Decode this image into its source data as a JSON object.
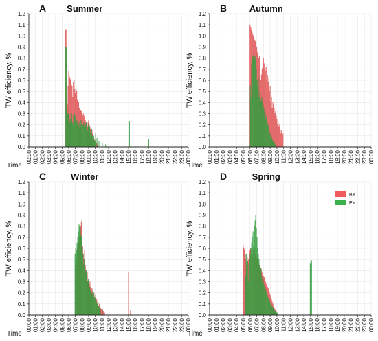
{
  "figure": {
    "ylabel": "TW efficiency, %",
    "xname": "Time",
    "legend": [
      {
        "name": "BY",
        "color": "#f05a5a"
      },
      {
        "name": "EY",
        "color": "#3cb04a"
      }
    ],
    "yticks": [
      0.0,
      0.1,
      0.2,
      0.3,
      0.4,
      0.5,
      0.6,
      0.7,
      0.8,
      0.9,
      1.0,
      1.1,
      1.2
    ],
    "xticks": [
      "00:00",
      "01:00",
      "02:00",
      "03:00",
      "04:00",
      "05:00",
      "06:00",
      "07:00",
      "08:00",
      "09:00",
      "10:00",
      "11:00",
      "12:00",
      "13:00",
      "14:00",
      "15:00",
      "16:00",
      "17:00",
      "18:00",
      "19:00",
      "20:00",
      "21:00",
      "22:00",
      "23:00",
      "00:00"
    ]
  },
  "chart_data": [
    {
      "type": "bar",
      "letter": "A",
      "title": "Summer",
      "xlim": [
        0,
        24
      ],
      "ylim": [
        0,
        1.2
      ],
      "grid": true,
      "series": [
        {
          "name": "BY",
          "color": "#f05a5a",
          "x": [
            5.5,
            5.6,
            5.7,
            5.8,
            5.9,
            6.0,
            6.1,
            6.2,
            6.3,
            6.4,
            6.5,
            6.6,
            6.7,
            6.8,
            6.9,
            7.0,
            7.1,
            7.2,
            7.3,
            7.4,
            7.5,
            7.6,
            7.7,
            7.8,
            7.9,
            8.0,
            8.1,
            8.2,
            8.3,
            8.4,
            8.5,
            8.6,
            8.7,
            8.8,
            8.9,
            9.0,
            9.1,
            9.2,
            9.3,
            9.4,
            9.5,
            9.6,
            9.7,
            9.8,
            9.9,
            10.0,
            10.1,
            10.2,
            10.3,
            10.4
          ],
          "values": [
            1.05,
            1.06,
            0.45,
            0.38,
            0.55,
            0.68,
            0.64,
            0.62,
            0.6,
            0.56,
            0.55,
            0.45,
            0.58,
            0.6,
            0.52,
            0.48,
            0.52,
            0.5,
            0.42,
            0.38,
            0.4,
            0.35,
            0.3,
            0.33,
            0.32,
            0.3,
            0.28,
            0.3,
            0.28,
            0.25,
            0.24,
            0.22,
            0.2,
            0.18,
            0.22,
            0.24,
            0.2,
            0.18,
            0.16,
            0.12,
            0.15,
            0.12,
            0.1,
            0.08,
            0.06,
            0.05,
            0.04,
            0.03,
            0.02,
            0.02
          ]
        },
        {
          "name": "EY",
          "color": "#3cb04a",
          "x": [
            5.55,
            5.65,
            5.75,
            5.85,
            5.95,
            6.05,
            6.15,
            6.25,
            6.35,
            6.45,
            6.55,
            6.65,
            6.75,
            6.85,
            6.95,
            7.05,
            7.15,
            7.25,
            7.35,
            7.45,
            7.55,
            7.65,
            7.75,
            7.85,
            7.95,
            8.05,
            8.15,
            8.25,
            8.35,
            8.45,
            8.55,
            8.65,
            8.75,
            8.85,
            8.95,
            9.05,
            9.15,
            9.25,
            9.35,
            9.45,
            9.55,
            9.65,
            9.75,
            9.85,
            9.95,
            10.05,
            10.25,
            10.55,
            11.05,
            11.55,
            12.05,
            15.05,
            15.15,
            17.95,
            18.05
          ],
          "values": [
            0.9,
            0.9,
            0.35,
            0.3,
            0.3,
            0.28,
            0.22,
            0.25,
            0.2,
            0.3,
            0.22,
            0.2,
            0.28,
            0.3,
            0.28,
            0.26,
            0.22,
            0.24,
            0.2,
            0.22,
            0.18,
            0.22,
            0.18,
            0.24,
            0.2,
            0.18,
            0.2,
            0.22,
            0.18,
            0.2,
            0.2,
            0.22,
            0.18,
            0.15,
            0.2,
            0.2,
            0.18,
            0.12,
            0.14,
            0.16,
            0.1,
            0.08,
            0.1,
            0.06,
            0.05,
            0.12,
            0.08,
            0.05,
            0.03,
            0.02,
            0.02,
            0.23,
            0.23,
            0.05,
            0.07
          ]
        }
      ]
    },
    {
      "type": "bar",
      "letter": "B",
      "title": "Autumn",
      "xlim": [
        0,
        24
      ],
      "ylim": [
        0,
        1.2
      ],
      "grid": true,
      "series": [
        {
          "name": "BY",
          "color": "#f05a5a",
          "x": [
            6.0,
            6.1,
            6.2,
            6.3,
            6.4,
            6.5,
            6.6,
            6.7,
            6.8,
            6.9,
            7.0,
            7.1,
            7.2,
            7.3,
            7.4,
            7.5,
            7.6,
            7.7,
            7.8,
            7.9,
            8.0,
            8.1,
            8.2,
            8.3,
            8.4,
            8.5,
            8.6,
            8.7,
            8.8,
            8.9,
            9.0,
            9.1,
            9.2,
            9.3,
            9.4,
            9.5,
            9.6,
            9.7,
            9.8,
            9.9,
            10.0,
            10.1,
            10.2,
            10.3,
            10.4,
            10.5,
            10.6,
            10.7,
            10.8,
            10.9
          ],
          "values": [
            1.1,
            1.08,
            1.05,
            1.04,
            1.02,
            1.0,
            0.98,
            0.96,
            0.95,
            0.92,
            0.9,
            0.85,
            0.88,
            0.8,
            0.82,
            0.75,
            0.6,
            0.65,
            0.7,
            0.72,
            0.8,
            0.75,
            0.7,
            0.68,
            0.72,
            0.6,
            0.65,
            0.58,
            0.62,
            0.5,
            0.55,
            0.4,
            0.45,
            0.35,
            0.4,
            0.38,
            0.35,
            0.3,
            0.32,
            0.28,
            0.25,
            0.2,
            0.22,
            0.18,
            0.2,
            0.15,
            0.12,
            0.15,
            0.1,
            0.12
          ]
        },
        {
          "name": "EY",
          "color": "#3cb04a",
          "x": [
            6.05,
            6.15,
            6.25,
            6.35,
            6.45,
            6.55,
            6.65,
            6.75,
            6.85,
            6.95,
            7.05,
            7.15,
            7.25,
            7.35,
            7.45,
            7.55,
            7.65,
            7.75,
            7.85,
            7.95,
            8.05,
            8.15,
            8.25,
            8.35,
            8.45,
            8.55,
            8.65,
            8.75,
            8.85,
            8.95,
            9.05,
            9.15,
            9.25,
            9.35,
            9.45,
            9.55,
            9.65,
            9.75,
            9.85
          ],
          "values": [
            0.55,
            0.45,
            0.75,
            0.8,
            0.82,
            0.84,
            0.8,
            0.82,
            0.78,
            0.7,
            0.6,
            0.55,
            0.62,
            0.45,
            0.5,
            0.4,
            0.42,
            0.45,
            0.4,
            0.38,
            0.35,
            0.3,
            0.32,
            0.25,
            0.28,
            0.22,
            0.2,
            0.18,
            0.15,
            0.12,
            0.1,
            0.12,
            0.08,
            0.06,
            0.05,
            0.04,
            0.03,
            0.02,
            0.02
          ]
        }
      ]
    },
    {
      "type": "bar",
      "letter": "C",
      "title": "Winter",
      "xlim": [
        0,
        24
      ],
      "ylim": [
        0,
        1.2
      ],
      "grid": true,
      "series": [
        {
          "name": "BY",
          "color": "#f05a5a",
          "x": [
            7.0,
            7.1,
            7.2,
            7.3,
            7.4,
            7.5,
            7.6,
            7.7,
            7.8,
            7.9,
            8.0,
            8.1,
            8.2,
            8.3,
            8.4,
            8.5,
            8.6,
            8.7,
            8.8,
            8.9,
            9.0,
            9.1,
            9.2,
            9.3,
            9.4,
            9.5,
            9.6,
            9.7,
            9.8,
            9.9,
            10.0,
            10.1,
            10.2,
            10.3,
            10.4,
            10.5,
            10.6,
            10.7,
            10.8,
            10.9,
            11.0,
            11.1,
            11.2,
            11.3,
            11.4,
            15.0,
            15.3,
            15.35
          ],
          "values": [
            0.45,
            0.42,
            0.5,
            0.6,
            0.72,
            0.65,
            0.7,
            0.78,
            0.8,
            0.84,
            0.86,
            0.62,
            0.55,
            0.5,
            0.58,
            0.45,
            0.4,
            0.35,
            0.38,
            0.3,
            0.32,
            0.28,
            0.3,
            0.25,
            0.22,
            0.24,
            0.2,
            0.18,
            0.2,
            0.16,
            0.15,
            0.12,
            0.14,
            0.1,
            0.12,
            0.08,
            0.1,
            0.07,
            0.06,
            0.05,
            0.04,
            0.05,
            0.03,
            0.02,
            0.02,
            0.39,
            0.04,
            0.04
          ]
        },
        {
          "name": "EY",
          "color": "#3cb04a",
          "x": [
            6.95,
            7.05,
            7.15,
            7.25,
            7.35,
            7.45,
            7.55,
            7.65,
            7.75,
            7.85,
            7.95,
            8.05,
            8.15,
            8.25,
            8.35,
            8.45,
            8.55,
            8.65,
            8.75,
            8.85,
            8.95,
            9.05,
            9.15,
            9.25,
            9.35,
            9.45,
            9.55,
            9.65,
            9.75,
            9.85,
            9.95,
            10.05,
            10.15,
            10.25,
            10.35,
            10.45,
            10.55,
            10.65,
            10.75,
            11.05
          ],
          "values": [
            0.55,
            0.6,
            0.58,
            0.65,
            0.7,
            0.75,
            0.82,
            0.8,
            0.78,
            0.72,
            0.7,
            0.6,
            0.55,
            0.45,
            0.5,
            0.42,
            0.38,
            0.4,
            0.35,
            0.3,
            0.32,
            0.28,
            0.25,
            0.22,
            0.24,
            0.2,
            0.18,
            0.22,
            0.2,
            0.16,
            0.14,
            0.18,
            0.12,
            0.1,
            0.12,
            0.08,
            0.06,
            0.08,
            0.05,
            0.04
          ]
        }
      ]
    },
    {
      "type": "bar",
      "letter": "D",
      "title": "Spring",
      "xlim": [
        0,
        24
      ],
      "ylim": [
        0,
        1.2
      ],
      "grid": true,
      "series": [
        {
          "name": "BY",
          "color": "#f05a5a",
          "x": [
            5.0,
            5.1,
            5.2,
            5.3,
            5.4,
            5.5,
            5.6,
            5.7,
            5.8,
            5.9,
            6.0,
            6.1,
            6.2,
            6.3,
            6.4,
            6.5,
            6.6,
            6.7,
            6.8,
            6.9,
            7.0,
            7.1,
            7.2,
            7.3,
            7.4,
            7.5,
            7.6,
            7.7,
            7.8,
            7.9,
            8.0,
            8.1,
            8.2,
            8.3,
            8.4,
            8.5,
            8.6,
            8.7,
            8.8,
            8.9,
            9.0,
            9.1,
            9.2,
            9.3,
            9.4,
            9.5,
            9.6,
            9.7,
            9.8,
            9.9
          ],
          "values": [
            0.62,
            0.6,
            0.58,
            0.55,
            0.5,
            0.45,
            0.52,
            0.48,
            0.5,
            0.55,
            0.58,
            0.6,
            0.55,
            0.56,
            0.52,
            0.58,
            0.55,
            0.6,
            0.55,
            0.58,
            0.5,
            0.52,
            0.48,
            0.46,
            0.45,
            0.44,
            0.42,
            0.4,
            0.38,
            0.36,
            0.35,
            0.34,
            0.32,
            0.3,
            0.28,
            0.26,
            0.25,
            0.24,
            0.22,
            0.2,
            0.18,
            0.16,
            0.14,
            0.12,
            0.1,
            0.08,
            0.06,
            0.05,
            0.04,
            0.03
          ]
        },
        {
          "name": "EY",
          "color": "#3cb04a",
          "x": [
            5.35,
            5.45,
            5.55,
            5.65,
            5.75,
            5.85,
            5.95,
            6.05,
            6.15,
            6.25,
            6.35,
            6.45,
            6.55,
            6.65,
            6.75,
            6.85,
            6.95,
            7.05,
            7.15,
            7.25,
            7.35,
            7.45,
            7.55,
            7.65,
            7.75,
            7.85,
            7.95,
            8.05,
            8.15,
            8.25,
            8.35,
            8.45,
            8.55,
            8.65,
            8.75,
            8.85,
            8.95,
            9.05,
            9.15,
            9.25,
            9.35,
            9.45,
            9.55,
            9.65,
            9.75,
            9.85,
            9.95,
            10.05,
            14.95,
            15.05,
            15.15
          ],
          "values": [
            0.35,
            0.55,
            0.4,
            0.48,
            0.3,
            0.45,
            0.5,
            0.55,
            0.6,
            0.65,
            0.7,
            0.75,
            0.62,
            0.8,
            0.85,
            0.9,
            0.78,
            0.7,
            0.6,
            0.55,
            0.5,
            0.45,
            0.4,
            0.42,
            0.35,
            0.3,
            0.32,
            0.28,
            0.25,
            0.24,
            0.22,
            0.2,
            0.18,
            0.16,
            0.15,
            0.14,
            0.12,
            0.1,
            0.09,
            0.08,
            0.07,
            0.06,
            0.05,
            0.04,
            0.03,
            0.03,
            0.02,
            0.02,
            0.46,
            0.48,
            0.49
          ]
        }
      ]
    }
  ]
}
